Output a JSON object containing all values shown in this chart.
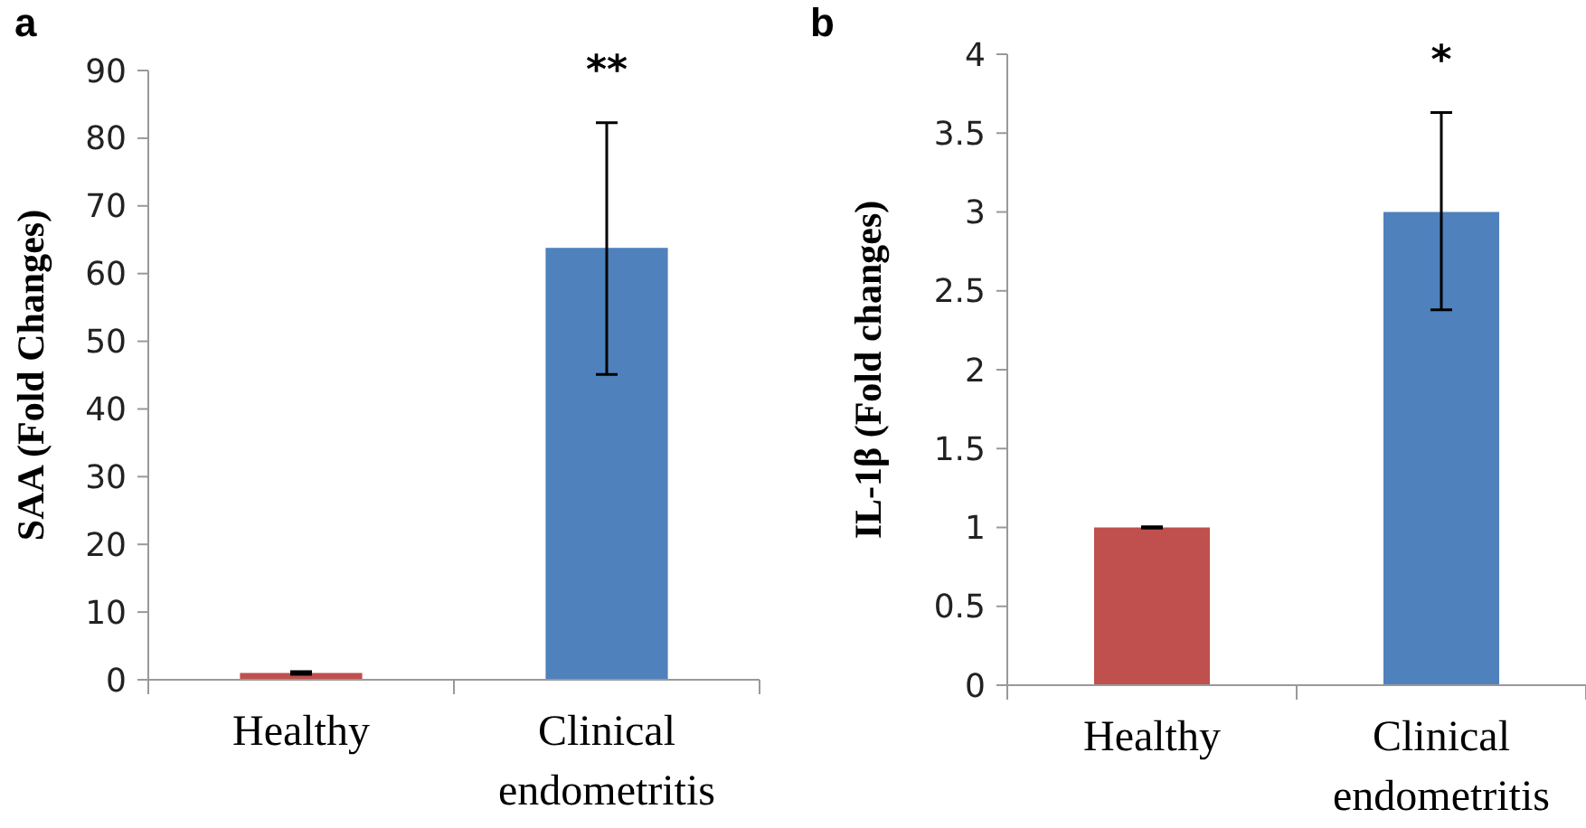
{
  "chart_data": [
    {
      "type": "bar",
      "title": "a",
      "ylabel": "SAA (Fold Changes)",
      "categories": [
        "Healthy",
        "Clinical endometritis"
      ],
      "values": [
        1.0,
        63.8
      ],
      "colors": [
        "#c0504d",
        "#4f81bd"
      ],
      "errors": [
        0.2,
        [
          45.1,
          82.3
        ]
      ],
      "ylim": [
        0,
        90
      ],
      "yticks": [
        0,
        10,
        20,
        30,
        40,
        50,
        60,
        70,
        80,
        90
      ],
      "annotations": [
        "**"
      ]
    },
    {
      "type": "bar",
      "title": "b",
      "ylabel": "IL-1β (Fold changes)",
      "categories": [
        "Healthy",
        "Clinical endometritis"
      ],
      "values": [
        1.0,
        3.0
      ],
      "colors": [
        "#c0504d",
        "#4f81bd"
      ],
      "errors": [
        0.005,
        [
          2.38,
          3.63
        ]
      ],
      "ylim": [
        0,
        4
      ],
      "yticks": [
        0,
        0.5,
        1,
        1.5,
        2,
        2.5,
        3,
        3.5,
        4
      ],
      "annotations": [
        "*"
      ]
    }
  ]
}
